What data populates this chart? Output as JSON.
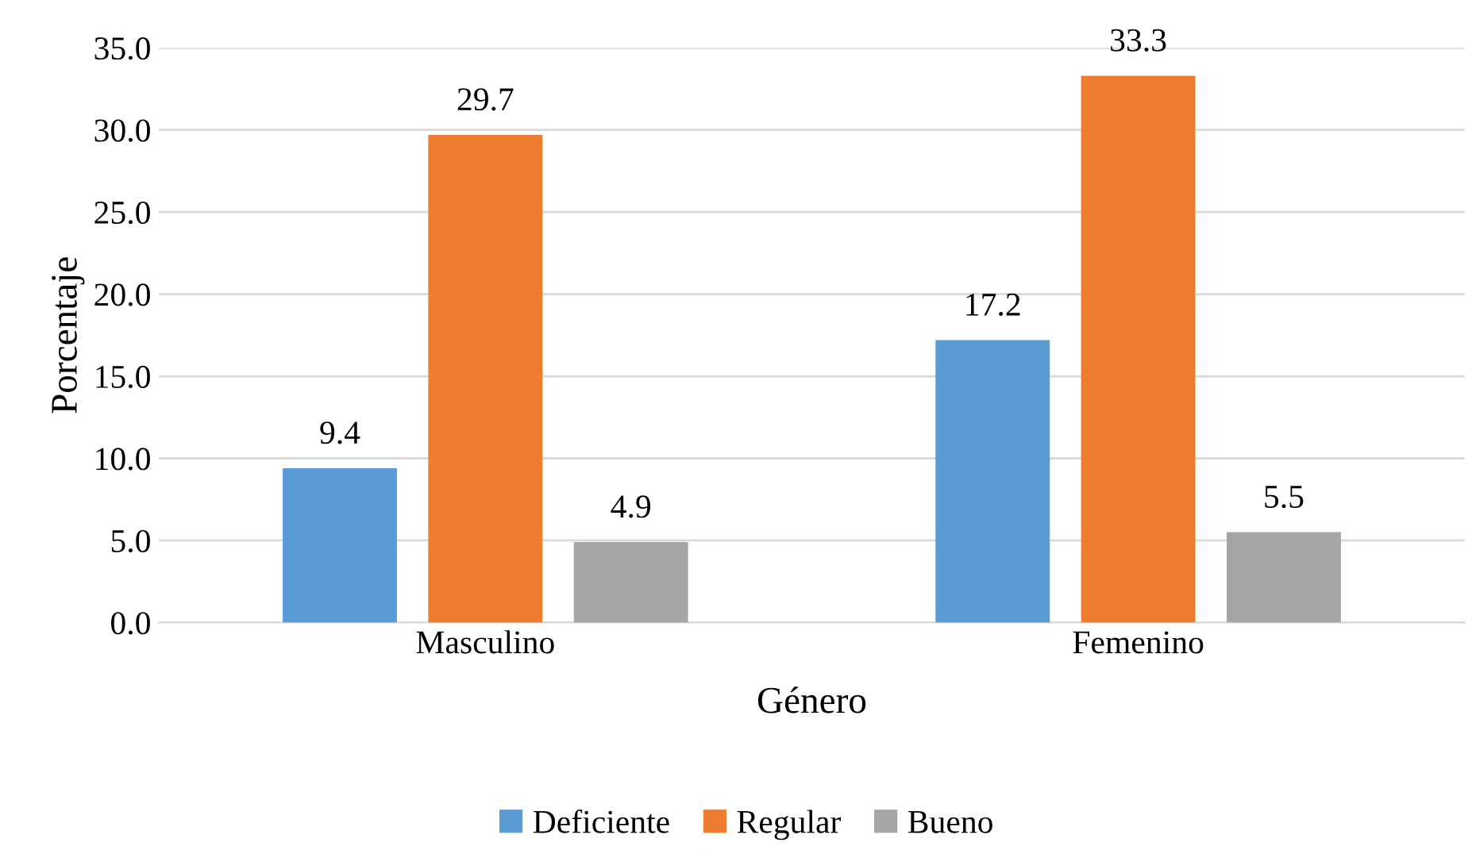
{
  "chart_data": {
    "type": "bar",
    "xlabel": "Género",
    "ylabel": "Porcentaje",
    "categories": [
      "Masculino",
      "Femenino"
    ],
    "series": [
      {
        "name": "Deficiente",
        "color": "#5b9bd5",
        "values": [
          9.4,
          17.2
        ]
      },
      {
        "name": "Regular",
        "color": "#ed7d31",
        "values": [
          29.7,
          33.3
        ]
      },
      {
        "name": "Bueno",
        "color": "#a5a5a5",
        "values": [
          4.9,
          5.5
        ]
      }
    ],
    "ylim": [
      0,
      35
    ],
    "yticks": [
      {
        "value": 0,
        "label": "0.0"
      },
      {
        "value": 5,
        "label": "5.0"
      },
      {
        "value": 10,
        "label": "10.0"
      },
      {
        "value": 15,
        "label": "15.0"
      },
      {
        "value": 20,
        "label": "20.0"
      },
      {
        "value": 25,
        "label": "25.0"
      },
      {
        "value": 30,
        "label": "30.0"
      },
      {
        "value": 35,
        "label": "35.0"
      }
    ],
    "grid": "y",
    "legend": "bottom",
    "data_labels": true
  }
}
